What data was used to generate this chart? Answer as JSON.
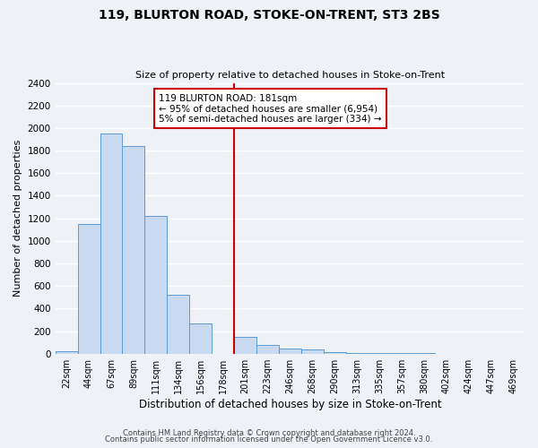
{
  "title": "119, BLURTON ROAD, STOKE-ON-TRENT, ST3 2BS",
  "subtitle": "Size of property relative to detached houses in Stoke-on-Trent",
  "xlabel": "Distribution of detached houses by size in Stoke-on-Trent",
  "ylabel": "Number of detached properties",
  "bin_labels": [
    "22sqm",
    "44sqm",
    "67sqm",
    "89sqm",
    "111sqm",
    "134sqm",
    "156sqm",
    "178sqm",
    "201sqm",
    "223sqm",
    "246sqm",
    "268sqm",
    "290sqm",
    "313sqm",
    "335sqm",
    "357sqm",
    "380sqm",
    "402sqm",
    "424sqm",
    "447sqm",
    "469sqm"
  ],
  "bar_heights": [
    25,
    1150,
    1950,
    1840,
    1220,
    520,
    270,
    0,
    148,
    75,
    48,
    35,
    15,
    8,
    5,
    3,
    2,
    1,
    1,
    1,
    0
  ],
  "bar_color": "#c9daf0",
  "bar_edge_color": "#5b9bd5",
  "vline_x": 7.5,
  "vline_color": "#cc0000",
  "ylim": [
    0,
    2400
  ],
  "yticks": [
    0,
    200,
    400,
    600,
    800,
    1000,
    1200,
    1400,
    1600,
    1800,
    2000,
    2200,
    2400
  ],
  "annotation_title": "119 BLURTON ROAD: 181sqm",
  "annotation_line1": "← 95% of detached houses are smaller (6,954)",
  "annotation_line2": "5% of semi-detached houses are larger (334) →",
  "footer1": "Contains HM Land Registry data © Crown copyright and database right 2024.",
  "footer2": "Contains public sector information licensed under the Open Government Licence v3.0.",
  "bg_color": "#eef2f7",
  "grid_color": "#d0d8e4"
}
